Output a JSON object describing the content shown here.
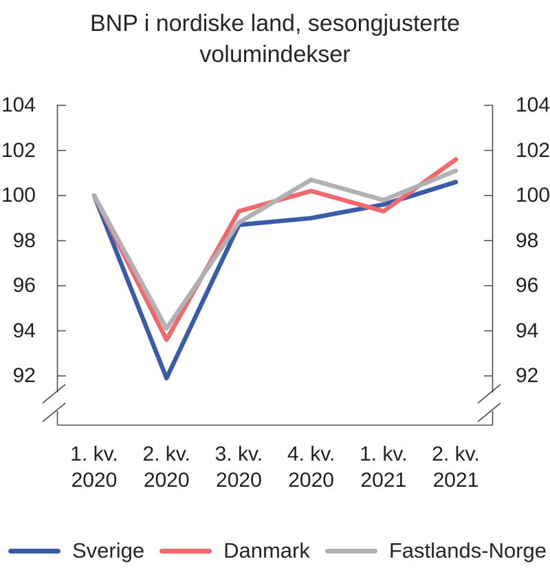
{
  "chart_data": {
    "type": "line",
    "title": "BNP i nordiske land, sesongjusterte volumindekser",
    "categories": [
      "1. kv. 2020",
      "2. kv. 2020",
      "3. kv. 2020",
      "4. kv. 2020",
      "1. kv. 2021",
      "2. kv. 2021"
    ],
    "x_tick_labels": [
      {
        "q": "1. kv.",
        "year": "2020"
      },
      {
        "q": "2. kv.",
        "year": "2020"
      },
      {
        "q": "3. kv.",
        "year": "2020"
      },
      {
        "q": "4. kv.",
        "year": "2020"
      },
      {
        "q": "1. kv.",
        "year": "2021"
      },
      {
        "q": "2. kv.",
        "year": "2021"
      }
    ],
    "y_ticks": [
      "104",
      "102",
      "100",
      "98",
      "96",
      "94",
      "92"
    ],
    "ylim": [
      92,
      104
    ],
    "axis_break_at_bottom": true,
    "duplicate_right_axis": true,
    "grid": false,
    "legend_position": "bottom",
    "series": [
      {
        "name": "Sverige",
        "color": "#3A5CA8",
        "values": [
          100,
          91.9,
          98.7,
          99.0,
          99.6,
          100.6
        ]
      },
      {
        "name": "Danmark",
        "color": "#F0696C",
        "values": [
          100,
          93.6,
          99.3,
          100.2,
          99.3,
          101.6
        ]
      },
      {
        "name": "Fastlands-Norge",
        "color": "#B1B1B4",
        "values": [
          100,
          94.1,
          98.8,
          100.7,
          99.8,
          101.1
        ]
      }
    ]
  },
  "legend": {
    "items": [
      {
        "label": "Sverige",
        "color": "#3A5CA8"
      },
      {
        "label": "Danmark",
        "color": "#F0696C"
      },
      {
        "label": "Fastlands-Norge",
        "color": "#B1B1B4"
      }
    ]
  },
  "colors": {
    "axis": "#4a4a4c",
    "text": "#231f20",
    "background": "#ffffff"
  }
}
